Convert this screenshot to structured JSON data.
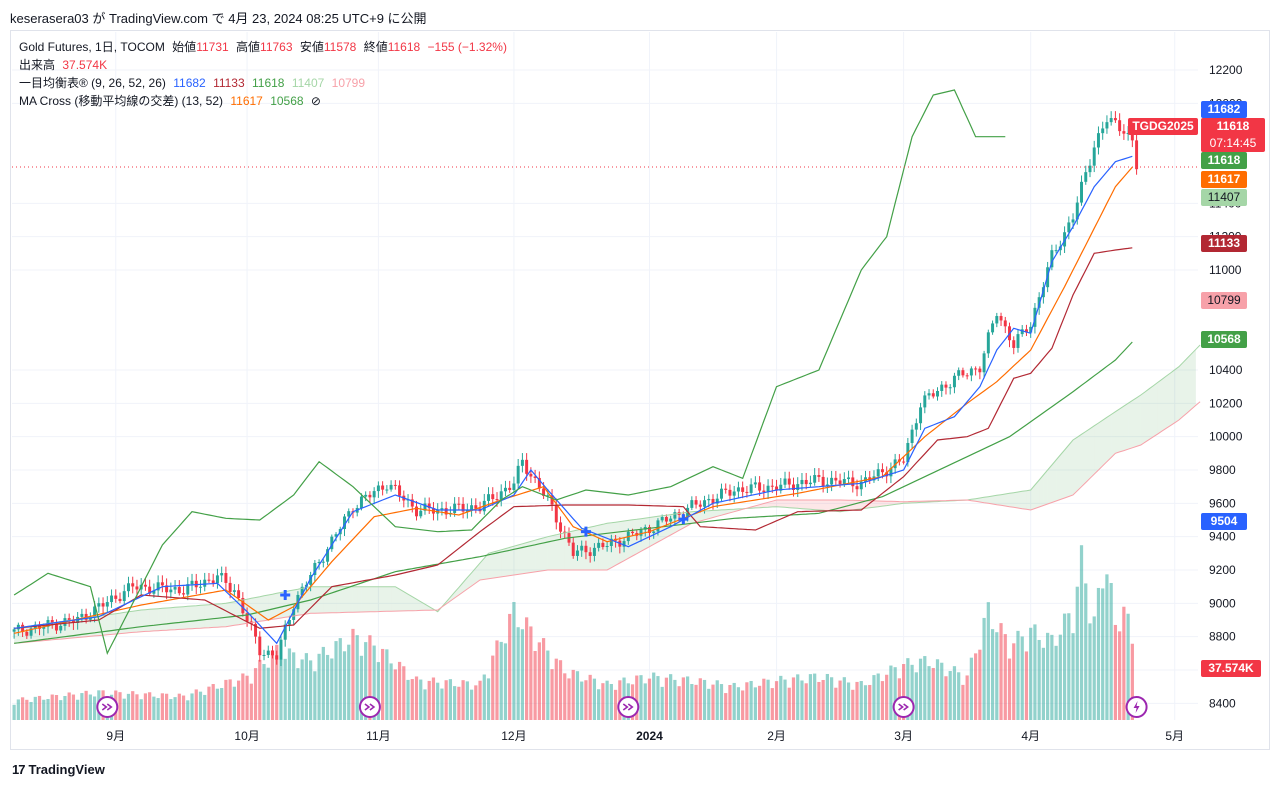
{
  "header": {
    "title": "keserasera03 が TradingView.com で 4月 23, 2024 08:25 UTC+9 に公開"
  },
  "legend": {
    "symbol": "Gold Futures, 1日, TOCOM",
    "open_label": "始値",
    "open": "11731",
    "high_label": "高値",
    "high": "11763",
    "low_label": "安値",
    "low": "11578",
    "close_label": "終値",
    "close": "11618",
    "change": "−155 (−1.32%)",
    "volume_label": "出来高",
    "volume": "37.574K",
    "ichimoku_label": "一目均衡表® (9, 26, 52, 26)",
    "ich_conversion": "11682",
    "ich_base": "11133",
    "ich_lagging": "11618",
    "ich_span_a": "11407",
    "ich_span_b": "10799",
    "ma_label": "MA Cross (移動平均線の交差) (13, 52)",
    "ma_fast": "11617",
    "ma_slow": "10568",
    "ma_eye": "⊘"
  },
  "badges": {
    "conversion": "11682",
    "close": "11618",
    "symbol": "TGDG2025",
    "countdown": "07:14:45",
    "lagging": "11618",
    "ma_fast": "11617",
    "span_a": "11407",
    "base": "11133",
    "span_b": "10799",
    "ma_slow": "10568",
    "cross": "9504",
    "volume": "37.574K"
  },
  "colors": {
    "up": "#26a69a",
    "down": "#f23645",
    "conversion": "#2962ff",
    "base": "#b22833",
    "lagging": "#43a047",
    "span_a": "#a5d6a7",
    "span_b": "#f7a1a9",
    "ma_fast": "#ff6d00",
    "ma_slow": "#43a047"
  },
  "footer": {
    "brand": "TradingView",
    "logo": "17"
  },
  "chart_data": {
    "type": "candlestick",
    "title": "Gold Futures, 1日, TOCOM",
    "ylabel": "",
    "xlabel": "",
    "ylim": [
      8300,
      12350
    ],
    "yticks": [
      8400,
      8600,
      8800,
      9000,
      9200,
      9400,
      9600,
      9800,
      10000,
      10200,
      10400,
      11000,
      11200,
      11400,
      12000,
      12200
    ],
    "xticks": [
      "9月",
      "10月",
      "11月",
      "12月",
      "2024",
      "2月",
      "3月",
      "4月",
      "5月"
    ],
    "xtick_index": [
      24,
      55,
      86,
      118,
      150,
      180,
      210,
      240,
      274
    ],
    "total_slots": 280,
    "markers": [
      {
        "index": 22,
        "type": "event-icon"
      },
      {
        "index": 84,
        "type": "event-icon"
      },
      {
        "index": 145,
        "type": "event-icon"
      },
      {
        "index": 210,
        "type": "event-icon"
      },
      {
        "index": 265,
        "type": "lightning-icon"
      }
    ],
    "cross_markers": [
      {
        "index": 64,
        "value": 9050
      },
      {
        "index": 135,
        "value": 9430
      },
      {
        "index": 158,
        "value": 9505
      }
    ],
    "series": [
      {
        "name": "close",
        "type": "candlestick",
        "anchors": [
          [
            0,
            8830
          ],
          [
            15,
            8900
          ],
          [
            28,
            9100
          ],
          [
            40,
            9080
          ],
          [
            48,
            9160
          ],
          [
            52,
            9080
          ],
          [
            58,
            8720
          ],
          [
            62,
            8680
          ],
          [
            66,
            9000
          ],
          [
            72,
            9250
          ],
          [
            80,
            9580
          ],
          [
            88,
            9720
          ],
          [
            95,
            9560
          ],
          [
            102,
            9560
          ],
          [
            110,
            9580
          ],
          [
            118,
            9720
          ],
          [
            120,
            9850
          ],
          [
            126,
            9620
          ],
          [
            132,
            9300
          ],
          [
            140,
            9350
          ],
          [
            150,
            9450
          ],
          [
            160,
            9580
          ],
          [
            170,
            9680
          ],
          [
            180,
            9700
          ],
          [
            190,
            9740
          ],
          [
            200,
            9720
          ],
          [
            210,
            9860
          ],
          [
            214,
            10200
          ],
          [
            222,
            10350
          ],
          [
            228,
            10420
          ],
          [
            232,
            10750
          ],
          [
            236,
            10550
          ],
          [
            240,
            10680
          ],
          [
            245,
            11080
          ],
          [
            250,
            11320
          ],
          [
            255,
            11750
          ],
          [
            258,
            11900
          ],
          [
            262,
            11850
          ],
          [
            264,
            11760
          ],
          [
            265,
            11618
          ]
        ]
      },
      {
        "name": "volume",
        "type": "bar",
        "unit": "K",
        "anchors": [
          [
            0,
            10
          ],
          [
            20,
            14
          ],
          [
            40,
            12
          ],
          [
            55,
            22
          ],
          [
            62,
            35
          ],
          [
            70,
            30
          ],
          [
            80,
            42
          ],
          [
            85,
            38
          ],
          [
            95,
            20
          ],
          [
            110,
            18
          ],
          [
            118,
            55
          ],
          [
            122,
            45
          ],
          [
            130,
            25
          ],
          [
            140,
            18
          ],
          [
            150,
            22
          ],
          [
            160,
            20
          ],
          [
            170,
            17
          ],
          [
            180,
            20
          ],
          [
            190,
            22
          ],
          [
            200,
            18
          ],
          [
            210,
            28
          ],
          [
            216,
            30
          ],
          [
            225,
            22
          ],
          [
            230,
            55
          ],
          [
            235,
            38
          ],
          [
            240,
            45
          ],
          [
            245,
            40
          ],
          [
            250,
            55
          ],
          [
            252,
            80
          ],
          [
            255,
            50
          ],
          [
            258,
            83
          ],
          [
            260,
            45
          ],
          [
            262,
            60
          ],
          [
            264,
            37.574
          ]
        ]
      },
      {
        "name": "ichimoku_conversion",
        "anchors": [
          [
            0,
            8850
          ],
          [
            20,
            8920
          ],
          [
            35,
            9100
          ],
          [
            48,
            9120
          ],
          [
            55,
            8950
          ],
          [
            62,
            8760
          ],
          [
            70,
            9150
          ],
          [
            80,
            9550
          ],
          [
            90,
            9650
          ],
          [
            100,
            9560
          ],
          [
            110,
            9560
          ],
          [
            118,
            9650
          ],
          [
            122,
            9800
          ],
          [
            126,
            9680
          ],
          [
            134,
            9450
          ],
          [
            145,
            9340
          ],
          [
            155,
            9460
          ],
          [
            165,
            9600
          ],
          [
            180,
            9680
          ],
          [
            200,
            9720
          ],
          [
            210,
            9800
          ],
          [
            215,
            10050
          ],
          [
            222,
            10120
          ],
          [
            228,
            10300
          ],
          [
            232,
            10520
          ],
          [
            236,
            10650
          ],
          [
            240,
            10620
          ],
          [
            245,
            11050
          ],
          [
            250,
            11260
          ],
          [
            255,
            11500
          ],
          [
            260,
            11650
          ],
          [
            264,
            11682
          ]
        ]
      },
      {
        "name": "ichimoku_base",
        "anchors": [
          [
            0,
            8850
          ],
          [
            20,
            8900
          ],
          [
            30,
            9050
          ],
          [
            45,
            9020
          ],
          [
            58,
            8850
          ],
          [
            66,
            8870
          ],
          [
            75,
            9100
          ],
          [
            90,
            9170
          ],
          [
            100,
            9230
          ],
          [
            110,
            9430
          ],
          [
            118,
            9580
          ],
          [
            130,
            9590
          ],
          [
            145,
            9590
          ],
          [
            158,
            9580
          ],
          [
            162,
            9460
          ],
          [
            175,
            9440
          ],
          [
            185,
            9550
          ],
          [
            200,
            9560
          ],
          [
            210,
            9760
          ],
          [
            218,
            9980
          ],
          [
            225,
            10000
          ],
          [
            230,
            10050
          ],
          [
            236,
            10350
          ],
          [
            240,
            10380
          ],
          [
            245,
            10530
          ],
          [
            250,
            10850
          ],
          [
            255,
            11100
          ],
          [
            260,
            11120
          ],
          [
            264,
            11133
          ]
        ]
      },
      {
        "name": "ichimoku_lagging",
        "anchors": [
          [
            0,
            9050
          ],
          [
            8,
            9180
          ],
          [
            18,
            9100
          ],
          [
            22,
            8700
          ],
          [
            28,
            9000
          ],
          [
            35,
            9350
          ],
          [
            42,
            9550
          ],
          [
            50,
            9510
          ],
          [
            58,
            9500
          ],
          [
            66,
            9650
          ],
          [
            72,
            9850
          ],
          [
            80,
            9700
          ],
          [
            90,
            9460
          ],
          [
            100,
            9430
          ],
          [
            108,
            9440
          ],
          [
            115,
            9620
          ],
          [
            120,
            9700
          ],
          [
            128,
            9620
          ],
          [
            135,
            9680
          ],
          [
            145,
            9650
          ],
          [
            155,
            9700
          ],
          [
            165,
            9820
          ],
          [
            172,
            9750
          ],
          [
            180,
            10300
          ],
          [
            190,
            10400
          ],
          [
            195,
            10700
          ],
          [
            200,
            11000
          ],
          [
            206,
            11200
          ],
          [
            212,
            11800
          ],
          [
            217,
            12050
          ],
          [
            222,
            12080
          ],
          [
            227,
            11800
          ],
          [
            234,
            11800
          ]
        ]
      },
      {
        "name": "ichimoku_span_a",
        "anchors": [
          [
            0,
            8850
          ],
          [
            30,
            8960
          ],
          [
            50,
            9000
          ],
          [
            70,
            9100
          ],
          [
            90,
            9100
          ],
          [
            100,
            8950
          ],
          [
            112,
            9300
          ],
          [
            126,
            9400
          ],
          [
            140,
            9480
          ],
          [
            160,
            9550
          ],
          [
            180,
            9580
          ],
          [
            195,
            9550
          ],
          [
            210,
            9600
          ],
          [
            225,
            9620
          ],
          [
            240,
            9680
          ],
          [
            250,
            9980
          ],
          [
            260,
            10150
          ],
          [
            266,
            10250
          ],
          [
            275,
            10420
          ],
          [
            280,
            10550
          ]
        ]
      },
      {
        "name": "ichimoku_span_b",
        "anchors": [
          [
            0,
            8760
          ],
          [
            30,
            8830
          ],
          [
            50,
            8860
          ],
          [
            70,
            8940
          ],
          [
            100,
            8960
          ],
          [
            110,
            9140
          ],
          [
            126,
            9200
          ],
          [
            140,
            9200
          ],
          [
            160,
            9480
          ],
          [
            180,
            9620
          ],
          [
            195,
            9620
          ],
          [
            210,
            9610
          ],
          [
            225,
            9620
          ],
          [
            240,
            9560
          ],
          [
            250,
            9650
          ],
          [
            260,
            9900
          ],
          [
            266,
            9950
          ],
          [
            275,
            10100
          ],
          [
            280,
            10210
          ]
        ]
      },
      {
        "name": "ma_fast",
        "anchors": [
          [
            0,
            8820
          ],
          [
            30,
            8990
          ],
          [
            50,
            9080
          ],
          [
            60,
            8900
          ],
          [
            66,
            8980
          ],
          [
            75,
            9250
          ],
          [
            85,
            9520
          ],
          [
            95,
            9570
          ],
          [
            105,
            9530
          ],
          [
            115,
            9620
          ],
          [
            125,
            9700
          ],
          [
            132,
            9460
          ],
          [
            140,
            9370
          ],
          [
            150,
            9430
          ],
          [
            165,
            9580
          ],
          [
            185,
            9660
          ],
          [
            205,
            9760
          ],
          [
            215,
            10000
          ],
          [
            225,
            10200
          ],
          [
            232,
            10330
          ],
          [
            240,
            10520
          ],
          [
            248,
            10900
          ],
          [
            255,
            11250
          ],
          [
            260,
            11500
          ],
          [
            264,
            11617
          ]
        ]
      },
      {
        "name": "ma_slow",
        "anchors": [
          [
            0,
            8760
          ],
          [
            30,
            8860
          ],
          [
            55,
            8930
          ],
          [
            70,
            9020
          ],
          [
            90,
            9190
          ],
          [
            110,
            9280
          ],
          [
            130,
            9390
          ],
          [
            150,
            9450
          ],
          [
            170,
            9510
          ],
          [
            190,
            9540
          ],
          [
            205,
            9640
          ],
          [
            220,
            9820
          ],
          [
            235,
            10000
          ],
          [
            250,
            10270
          ],
          [
            260,
            10460
          ],
          [
            264,
            10568
          ]
        ]
      }
    ]
  }
}
